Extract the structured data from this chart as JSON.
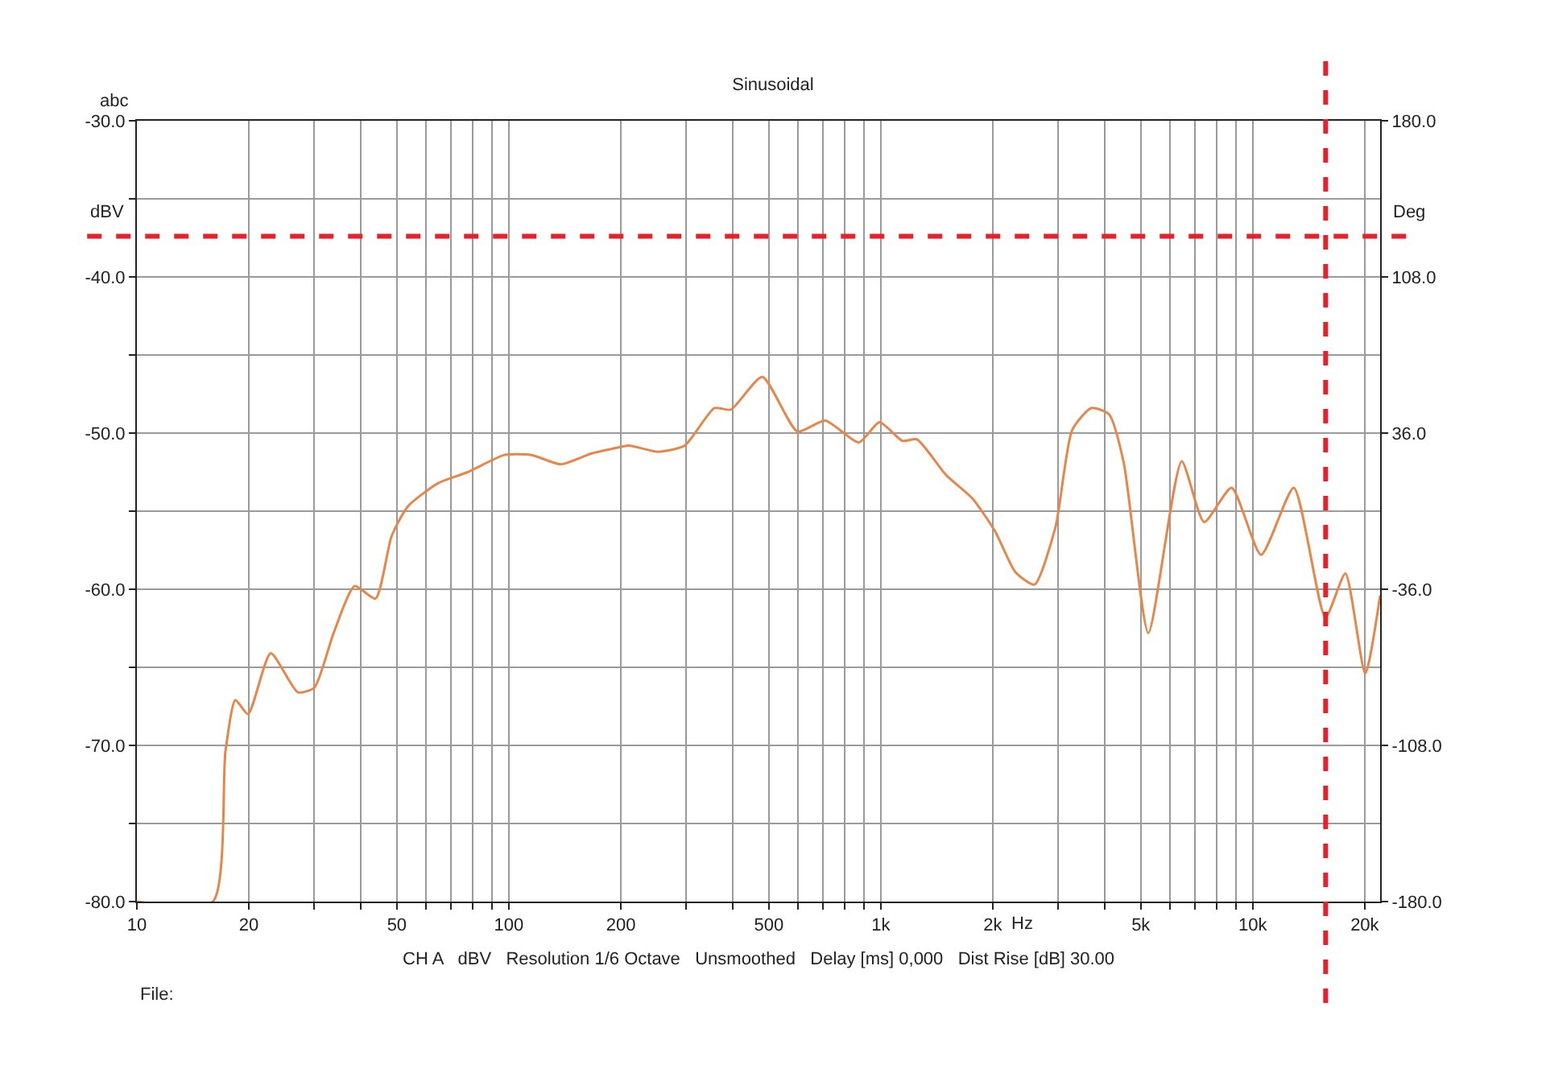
{
  "chart_data": {
    "type": "line",
    "title": "Sinusoidal",
    "xlabel": "Hz",
    "ylabel": "dBV",
    "y2label": "Deg",
    "annotations": [
      "abc",
      "CH A   dBV   Resolution 1/6 Octave   Unsmoothed   Delay [ms] 0,000   Dist Rise [dB] 30.00",
      "File:"
    ],
    "log": "x",
    "grid": true,
    "marker": "none",
    "line_style": "solid",
    "xlim": [
      10,
      22000
    ],
    "xticks": [
      10,
      20,
      {
        "value": 30,
        "label": null
      },
      {
        "value": 40,
        "label": null
      },
      50,
      {
        "value": 60,
        "label": null
      },
      {
        "value": 70,
        "label": null
      },
      {
        "value": 80,
        "label": null
      },
      {
        "value": 90,
        "label": null
      },
      100,
      200,
      {
        "value": 300,
        "label": null
      },
      {
        "value": 400,
        "label": null
      },
      500,
      {
        "value": 600,
        "label": null
      },
      {
        "value": 700,
        "label": null
      },
      {
        "value": 800,
        "label": null
      },
      {
        "value": 900,
        "label": null
      },
      {
        "value": 1000,
        "label": "1k"
      },
      {
        "value": 2000,
        "label": "2k"
      },
      {
        "value": 3000,
        "label": null
      },
      {
        "value": 4000,
        "label": null
      },
      {
        "value": 5000,
        "label": "5k"
      },
      {
        "value": 6000,
        "label": null
      },
      {
        "value": 7000,
        "label": null
      },
      {
        "value": 8000,
        "label": null
      },
      {
        "value": 9000,
        "label": null
      },
      {
        "value": 10000,
        "label": "10k"
      },
      {
        "value": 20000,
        "label": "20k"
      }
    ],
    "ylim": [
      -80,
      -30
    ],
    "yticks": [
      {
        "value": -80,
        "label": "-80.0"
      },
      {
        "value": -75,
        "label": null
      },
      {
        "value": -70,
        "label": "-70.0"
      },
      {
        "value": -65,
        "label": null
      },
      {
        "value": -60,
        "label": "-60.0"
      },
      {
        "value": -55,
        "label": null
      },
      {
        "value": -50,
        "label": "-50.0"
      },
      {
        "value": -45,
        "label": null
      },
      {
        "value": -40,
        "label": "-40.0"
      },
      {
        "value": -35,
        "label": null
      },
      {
        "value": -30,
        "label": "-30.0"
      }
    ],
    "y2lim": [
      -180,
      180
    ],
    "y2ticks": [
      {
        "value": -180,
        "label": "-180.0"
      },
      {
        "value": -108,
        "label": "-108.0"
      },
      {
        "value": -36,
        "label": "-36.0"
      },
      {
        "value": 36,
        "label": "36.0"
      },
      {
        "value": 108,
        "label": "108.0"
      },
      {
        "value": 180,
        "label": "180.0"
      }
    ],
    "ref_lines": [
      {
        "axis": "y",
        "value": -37.4,
        "color": "#e8202a",
        "line_style": "dashed"
      },
      {
        "axis": "x",
        "value": 15700,
        "color": "#e8202a",
        "line_style": "dashed"
      }
    ],
    "series": [
      {
        "color": "#e8864a",
        "x": [
          10,
          16,
          17.3,
          18.4,
          19.9,
          22.9,
          27.1,
          30,
          33.8,
          38.5,
          43.8,
          48.4,
          53.5,
          64.6,
          77.5,
          97.4,
          115,
          138,
          167,
          190,
          210,
          252,
          297,
          357,
          395,
          480,
          597,
          709,
          873,
          992,
          1143,
          1250,
          1500,
          1765,
          2030,
          2300,
          2590,
          2950,
          3270,
          3680,
          4110,
          4500,
          5240,
          6440,
          7400,
          8770,
          10530,
          12890,
          15680,
          17740,
          20060,
          22000
        ],
        "values": [
          -80,
          -80,
          -70.4,
          -67.1,
          -68.0,
          -64.1,
          -66.6,
          -66.3,
          -62.8,
          -59.8,
          -60.6,
          -56.6,
          -54.7,
          -53.2,
          -52.5,
          -51.4,
          -51.4,
          -52.0,
          -51.3,
          -51.0,
          -50.8,
          -51.2,
          -50.8,
          -48.4,
          -48.5,
          -46.4,
          -49.9,
          -49.2,
          -50.6,
          -49.3,
          -50.5,
          -50.4,
          -52.7,
          -54.2,
          -56.3,
          -58.9,
          -59.7,
          -56.0,
          -49.8,
          -48.4,
          -48.8,
          -51.9,
          -62.8,
          -51.8,
          -55.7,
          -53.5,
          -57.8,
          -53.5,
          -61.8,
          -59.0,
          -65.4,
          -60.4
        ]
      }
    ]
  }
}
